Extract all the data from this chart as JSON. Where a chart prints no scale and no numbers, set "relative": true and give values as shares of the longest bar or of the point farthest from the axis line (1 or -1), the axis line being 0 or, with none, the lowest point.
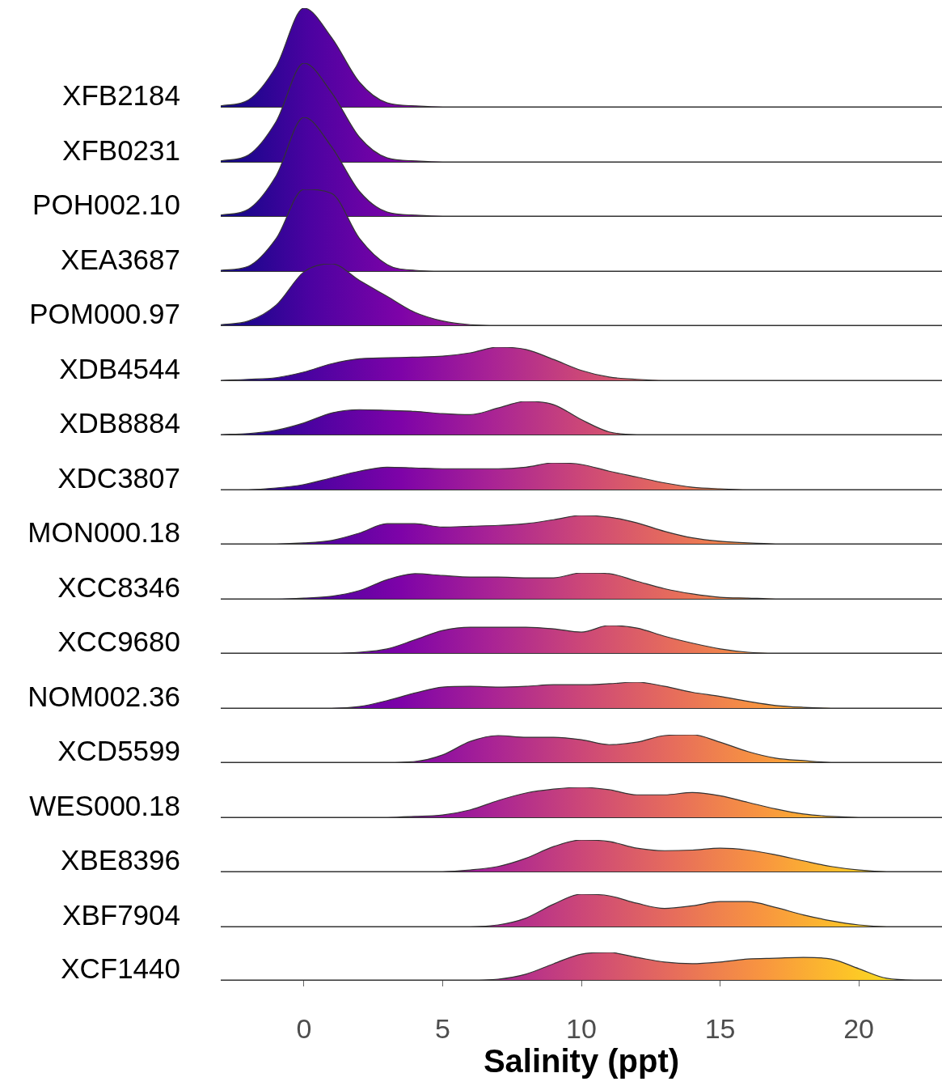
{
  "chart_data": [
    {
      "type": "area",
      "relative": true,
      "xlim": [
        -3,
        23
      ],
      "tick_labels": false,
      "x": [
        -3,
        -2,
        -1,
        0,
        1,
        2,
        3,
        4,
        5,
        6,
        7,
        8,
        9,
        10,
        11,
        12,
        13,
        14,
        15,
        16,
        17,
        18,
        19,
        20,
        21,
        22,
        23
      ],
      "series": [
        {
          "name": "XFB2184",
          "color": "#333333",
          "values": [
            0.01,
            0.07,
            0.41,
            1,
            0.7,
            0.25,
            0.04,
            0.01,
            0,
            0,
            0,
            0,
            0,
            0,
            0,
            0,
            0,
            0,
            0,
            0,
            0,
            0,
            0,
            0,
            0,
            0,
            0
          ]
        }
      ]
    },
    {
      "type": "area",
      "relative": true,
      "xlim": [
        -3,
        23
      ],
      "tick_labels": false,
      "x": [
        -3,
        -2,
        -1,
        0,
        1,
        2,
        3,
        4,
        5,
        6,
        7,
        8,
        9,
        10,
        11,
        12,
        13,
        14,
        15,
        16,
        17,
        18,
        19,
        20,
        21,
        22,
        23
      ],
      "series": [
        {
          "name": "XFB0231",
          "color": "#333333",
          "values": [
            0.01,
            0.07,
            0.41,
            1,
            0.7,
            0.25,
            0.04,
            0.01,
            0,
            0,
            0,
            0,
            0,
            0,
            0,
            0,
            0,
            0,
            0,
            0,
            0,
            0,
            0,
            0,
            0,
            0,
            0
          ]
        }
      ]
    },
    {
      "type": "area",
      "relative": true,
      "xlim": [
        -3,
        23
      ],
      "tick_labels": false,
      "x": [
        -3,
        -2,
        -1,
        0,
        1,
        2,
        3,
        4,
        5,
        6,
        7,
        8,
        9,
        10,
        11,
        12,
        13,
        14,
        15,
        16,
        17,
        18,
        19,
        20,
        21,
        22,
        23
      ],
      "series": [
        {
          "name": "POH002.10",
          "color": "#333333",
          "values": [
            0.01,
            0.07,
            0.41,
            1,
            0.7,
            0.25,
            0.04,
            0.01,
            0,
            0,
            0,
            0,
            0,
            0,
            0,
            0,
            0,
            0,
            0,
            0,
            0,
            0,
            0,
            0,
            0,
            0,
            0
          ]
        }
      ]
    },
    {
      "type": "area",
      "relative": true,
      "xlim": [
        -3,
        23
      ],
      "tick_labels": false,
      "x": [
        -3,
        -2,
        -1,
        0,
        1,
        2,
        3,
        4,
        5,
        6,
        7,
        8,
        9,
        10,
        11,
        12,
        13,
        14,
        15,
        16,
        17,
        18,
        19,
        20,
        21,
        22,
        23
      ],
      "series": [
        {
          "name": "XEA3687",
          "color": "#333333",
          "values": [
            0.01,
            0.06,
            0.4,
            1,
            0.95,
            0.4,
            0.08,
            0.01,
            0,
            0,
            0,
            0,
            0,
            0,
            0,
            0,
            0,
            0,
            0,
            0,
            0,
            0,
            0,
            0,
            0,
            0,
            0
          ]
        }
      ]
    },
    {
      "type": "area",
      "relative": true,
      "xlim": [
        -3,
        23
      ],
      "tick_labels": false,
      "x": [
        -3,
        -2,
        -1,
        0,
        1,
        2,
        3,
        4,
        5,
        6,
        7,
        8,
        9,
        10,
        11,
        12,
        13,
        14,
        15,
        16,
        17,
        18,
        19,
        20,
        21,
        22,
        23
      ],
      "series": [
        {
          "name": "POM000.97",
          "color": "#333333",
          "values": [
            0.01,
            0.07,
            0.33,
            0.87,
            1,
            0.73,
            0.47,
            0.21,
            0.07,
            0.01,
            0,
            0,
            0,
            0,
            0,
            0,
            0,
            0,
            0,
            0,
            0,
            0,
            0,
            0,
            0,
            0,
            0
          ]
        }
      ]
    },
    {
      "type": "area",
      "relative": true,
      "xlim": [
        -3,
        23
      ],
      "tick_labels": false,
      "x": [
        -3,
        -2,
        -1,
        0,
        1,
        2,
        3,
        4,
        5,
        6,
        7,
        8,
        9,
        10,
        11,
        12,
        13,
        14,
        15,
        16,
        17,
        18,
        19,
        20,
        21,
        22,
        23
      ],
      "series": [
        {
          "name": "XDB4544",
          "color": "#333333",
          "values": [
            0,
            0.03,
            0.08,
            0.25,
            0.5,
            0.65,
            0.68,
            0.7,
            0.73,
            0.83,
            1,
            0.93,
            0.63,
            0.3,
            0.1,
            0.03,
            0,
            0,
            0,
            0,
            0,
            0,
            0,
            0,
            0,
            0,
            0
          ]
        }
      ]
    },
    {
      "type": "area",
      "relative": true,
      "xlim": [
        -3,
        23
      ],
      "tick_labels": false,
      "x": [
        -3,
        -2,
        -1,
        0,
        1,
        2,
        3,
        4,
        5,
        6,
        7,
        8,
        9,
        10,
        11,
        12,
        13,
        14,
        15,
        16,
        17,
        18,
        19,
        20,
        21,
        22,
        23
      ],
      "series": [
        {
          "name": "XDB8884",
          "color": "#333333",
          "values": [
            0,
            0.03,
            0.13,
            0.35,
            0.65,
            0.75,
            0.73,
            0.7,
            0.63,
            0.6,
            0.8,
            1,
            0.9,
            0.45,
            0.08,
            0,
            0,
            0,
            0,
            0,
            0,
            0,
            0,
            0,
            0,
            0,
            0
          ]
        }
      ]
    },
    {
      "type": "area",
      "relative": true,
      "xlim": [
        -3,
        23
      ],
      "tick_labels": false,
      "x": [
        -3,
        -2,
        -1,
        0,
        1,
        2,
        3,
        4,
        5,
        6,
        7,
        8,
        9,
        10,
        11,
        12,
        13,
        14,
        15,
        16,
        17,
        18,
        19,
        20,
        21,
        22,
        23
      ],
      "series": [
        {
          "name": "XDC3807",
          "color": "#333333",
          "values": [
            0,
            0,
            0.06,
            0.19,
            0.44,
            0.69,
            0.84,
            0.81,
            0.78,
            0.78,
            0.78,
            0.84,
            1,
            0.94,
            0.69,
            0.47,
            0.25,
            0.09,
            0.03,
            0,
            0,
            0,
            0,
            0,
            0,
            0,
            0
          ]
        }
      ]
    },
    {
      "type": "area",
      "relative": true,
      "xlim": [
        -3,
        23
      ],
      "tick_labels": false,
      "x": [
        -3,
        -2,
        -1,
        0,
        1,
        2,
        3,
        4,
        5,
        6,
        7,
        8,
        9,
        10,
        11,
        12,
        13,
        14,
        15,
        16,
        17,
        18,
        19,
        20,
        21,
        22,
        23
      ],
      "series": [
        {
          "name": "MON000.18",
          "color": "#333333",
          "values": [
            0,
            0,
            0,
            0.03,
            0.12,
            0.38,
            0.71,
            0.71,
            0.59,
            0.62,
            0.65,
            0.71,
            0.85,
            1,
            0.94,
            0.74,
            0.44,
            0.21,
            0.09,
            0.03,
            0,
            0,
            0,
            0,
            0,
            0,
            0
          ]
        }
      ]
    },
    {
      "type": "area",
      "relative": true,
      "xlim": [
        -3,
        23
      ],
      "tick_labels": false,
      "x": [
        -3,
        -2,
        -1,
        0,
        1,
        2,
        3,
        4,
        5,
        6,
        7,
        8,
        9,
        10,
        11,
        12,
        13,
        14,
        15,
        16,
        17,
        18,
        19,
        20,
        21,
        22,
        23
      ],
      "series": [
        {
          "name": "XCC8346",
          "color": "#333333",
          "values": [
            0,
            0,
            0,
            0.03,
            0.1,
            0.32,
            0.74,
            0.97,
            0.9,
            0.84,
            0.84,
            0.81,
            0.81,
            1,
            0.97,
            0.68,
            0.39,
            0.19,
            0.06,
            0.03,
            0,
            0,
            0,
            0,
            0,
            0,
            0
          ]
        }
      ]
    },
    {
      "type": "area",
      "relative": true,
      "xlim": [
        -3,
        23
      ],
      "tick_labels": false,
      "x": [
        -3,
        -2,
        -1,
        0,
        1,
        2,
        3,
        4,
        5,
        6,
        7,
        8,
        9,
        10,
        11,
        12,
        13,
        14,
        15,
        16,
        17,
        18,
        19,
        20,
        21,
        22,
        23
      ],
      "series": [
        {
          "name": "XCC9680",
          "color": "#333333",
          "values": [
            0,
            0,
            0,
            0,
            0,
            0.03,
            0.15,
            0.48,
            0.82,
            0.94,
            0.94,
            0.94,
            0.88,
            0.76,
            1,
            0.91,
            0.61,
            0.36,
            0.15,
            0.03,
            0,
            0,
            0,
            0,
            0,
            0,
            0
          ]
        }
      ]
    },
    {
      "type": "area",
      "relative": true,
      "xlim": [
        -3,
        23
      ],
      "tick_labels": false,
      "x": [
        -3,
        -2,
        -1,
        0,
        1,
        2,
        3,
        4,
        5,
        6,
        7,
        8,
        9,
        10,
        11,
        12,
        13,
        14,
        15,
        16,
        17,
        18,
        19,
        20,
        21,
        22,
        23
      ],
      "series": [
        {
          "name": "NOM002.36",
          "color": "#333333",
          "values": [
            0,
            0,
            0,
            0,
            0,
            0.06,
            0.29,
            0.58,
            0.81,
            0.84,
            0.81,
            0.84,
            0.9,
            0.9,
            0.94,
            1,
            0.84,
            0.61,
            0.45,
            0.26,
            0.1,
            0.03,
            0,
            0,
            0,
            0,
            0
          ]
        }
      ]
    },
    {
      "type": "area",
      "relative": true,
      "xlim": [
        -3,
        23
      ],
      "tick_labels": false,
      "x": [
        -3,
        -2,
        -1,
        0,
        1,
        2,
        3,
        4,
        5,
        6,
        7,
        8,
        9,
        10,
        11,
        12,
        13,
        14,
        15,
        16,
        17,
        18,
        19,
        20,
        21,
        22,
        23
      ],
      "series": [
        {
          "name": "XCD5599",
          "color": "#333333",
          "values": [
            0,
            0,
            0,
            0,
            0,
            0,
            0,
            0.03,
            0.27,
            0.76,
            0.97,
            0.91,
            0.91,
            0.82,
            0.64,
            0.73,
            0.97,
            1,
            0.73,
            0.39,
            0.15,
            0.06,
            0,
            0,
            0,
            0,
            0
          ]
        }
      ]
    },
    {
      "type": "area",
      "relative": true,
      "xlim": [
        -3,
        23
      ],
      "tick_labels": false,
      "x": [
        -3,
        -2,
        -1,
        0,
        1,
        2,
        3,
        4,
        5,
        6,
        7,
        8,
        9,
        10,
        11,
        12,
        13,
        14,
        15,
        16,
        17,
        18,
        19,
        20,
        21,
        22,
        23
      ],
      "series": [
        {
          "name": "WES000.18",
          "color": "#333333",
          "values": [
            0,
            0,
            0,
            0,
            0,
            0,
            0,
            0.03,
            0.08,
            0.25,
            0.56,
            0.81,
            0.94,
            1,
            0.92,
            0.75,
            0.75,
            0.83,
            0.72,
            0.5,
            0.28,
            0.11,
            0.03,
            0,
            0,
            0,
            0
          ]
        }
      ]
    },
    {
      "type": "area",
      "relative": true,
      "xlim": [
        -3,
        23
      ],
      "tick_labels": false,
      "x": [
        -3,
        -2,
        -1,
        0,
        1,
        2,
        3,
        4,
        5,
        6,
        7,
        8,
        9,
        10,
        11,
        12,
        13,
        14,
        15,
        16,
        17,
        18,
        19,
        20,
        21,
        22,
        23
      ],
      "series": [
        {
          "name": "XBE8396",
          "color": "#333333",
          "values": [
            0,
            0,
            0,
            0,
            0,
            0,
            0,
            0,
            0,
            0.05,
            0.16,
            0.42,
            0.79,
            1,
            0.95,
            0.74,
            0.66,
            0.68,
            0.74,
            0.68,
            0.53,
            0.34,
            0.16,
            0.05,
            0,
            0,
            0
          ]
        }
      ]
    },
    {
      "type": "area",
      "relative": true,
      "xlim": [
        -3,
        23
      ],
      "tick_labels": false,
      "x": [
        -3,
        -2,
        -1,
        0,
        1,
        2,
        3,
        4,
        5,
        6,
        7,
        8,
        9,
        10,
        11,
        12,
        13,
        14,
        15,
        16,
        17,
        18,
        19,
        20,
        21,
        22,
        23
      ],
      "series": [
        {
          "name": "XBF7904",
          "color": "#333333",
          "values": [
            0,
            0,
            0,
            0,
            0,
            0,
            0,
            0,
            0,
            0,
            0.05,
            0.26,
            0.69,
            1,
            0.95,
            0.72,
            0.56,
            0.64,
            0.77,
            0.77,
            0.59,
            0.36,
            0.18,
            0.05,
            0,
            0,
            0
          ]
        }
      ]
    },
    {
      "type": "area",
      "relative": true,
      "xlim": [
        -3,
        23
      ],
      "xticks": [
        0,
        5,
        10,
        15,
        20
      ],
      "tick_labels": "x",
      "xlabel": "Salinity (ppt)",
      "x": [
        -3,
        -2,
        -1,
        0,
        1,
        2,
        3,
        4,
        5,
        6,
        7,
        8,
        9,
        10,
        11,
        12,
        13,
        14,
        15,
        16,
        17,
        18,
        19,
        20,
        21,
        22,
        23
      ],
      "series": [
        {
          "name": "XCF1440",
          "color": "#333333",
          "values": [
            0,
            0,
            0,
            0,
            0,
            0,
            0,
            0,
            0,
            0,
            0.03,
            0.21,
            0.59,
            0.94,
            1,
            0.82,
            0.65,
            0.59,
            0.65,
            0.76,
            0.79,
            0.82,
            0.76,
            0.41,
            0.06,
            0,
            0
          ]
        }
      ]
    }
  ]
}
